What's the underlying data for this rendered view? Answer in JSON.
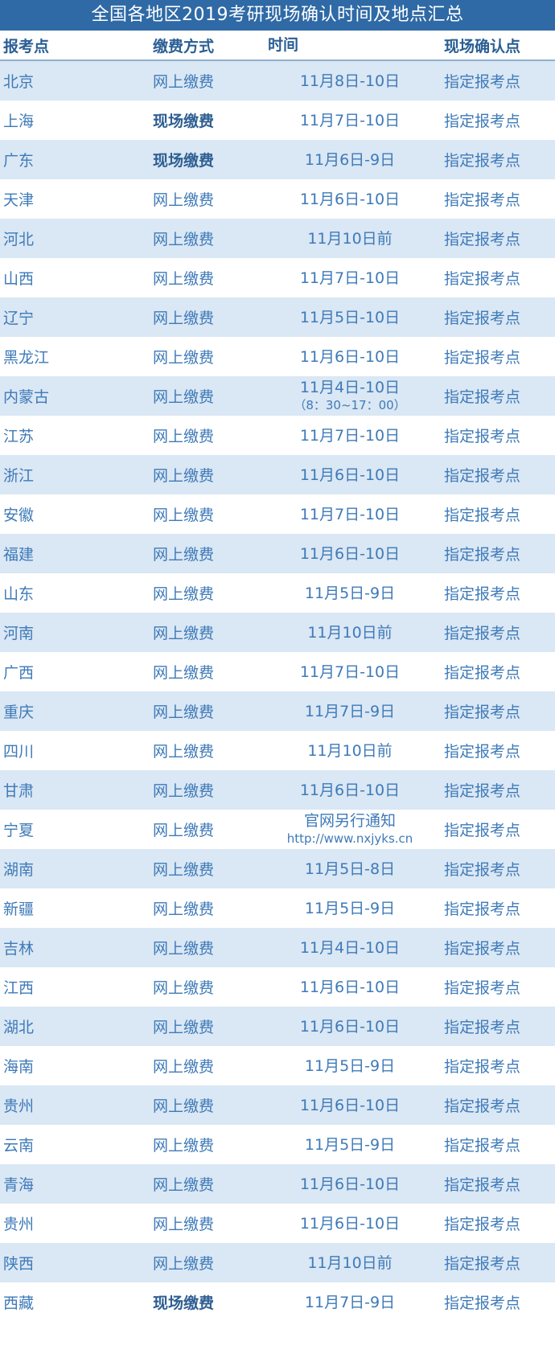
{
  "title": "全国各地区2019考研现场确认时间及地点汇总",
  "headers": [
    "报考点",
    "缴费方式",
    "时间",
    "现场确认点"
  ],
  "rows": [
    [
      "北京",
      "网上缴费",
      "11月8日-10日",
      "",
      "指定报考点",
      false
    ],
    [
      "上海",
      "现场缴费",
      "11月7日-10日",
      "",
      "指定报考点",
      true
    ],
    [
      "广东",
      "现场缴费",
      "11月6日-9日",
      "",
      "指定报考点",
      true
    ],
    [
      "天津",
      "网上缴费",
      "11月6日-10日",
      "",
      "指定报考点",
      false
    ],
    [
      "河北",
      "网上缴费",
      "11月10日前",
      "",
      "指定报考点",
      false
    ],
    [
      "山西",
      "网上缴费",
      "11月7日-10日",
      "",
      "指定报考点",
      false
    ],
    [
      "辽宁",
      "网上缴费",
      "11月5日-10日",
      "",
      "指定报考点",
      false
    ],
    [
      "黑龙江",
      "网上缴费",
      "11月6日-10日",
      "",
      "指定报考点",
      false
    ],
    [
      "内蒙古",
      "网上缴费",
      "11月4日-10日",
      "（8：30~17：00）",
      "指定报考点",
      false
    ],
    [
      "江苏",
      "网上缴费",
      "11月7日-10日",
      "",
      "指定报考点",
      false
    ],
    [
      "浙江",
      "网上缴费",
      "11月6日-10日",
      "",
      "指定报考点",
      false
    ],
    [
      "安徽",
      "网上缴费",
      "11月7日-10日",
      "",
      "指定报考点",
      false
    ],
    [
      "福建",
      "网上缴费",
      "11月6日-10日",
      "",
      "指定报考点",
      false
    ],
    [
      "山东",
      "网上缴费",
      "11月5日-9日",
      "",
      "指定报考点",
      false
    ],
    [
      "河南",
      "网上缴费",
      "11月10日前",
      "",
      "指定报考点",
      false
    ],
    [
      "广西",
      "网上缴费",
      "11月7日-10日",
      "",
      "指定报考点",
      false
    ],
    [
      "重庆",
      "网上缴费",
      "11月7日-9日",
      "",
      "指定报考点",
      false
    ],
    [
      "四川",
      "网上缴费",
      "11月10日前",
      "",
      "指定报考点",
      false
    ],
    [
      "甘肃",
      "网上缴费",
      "11月6日-10日",
      "",
      "指定报考点",
      false
    ],
    [
      "宁夏",
      "网上缴费",
      "官网另行通知",
      "http://www.nxjyks.cn",
      "指定报考点",
      false
    ],
    [
      "湖南",
      "网上缴费",
      "11月5日-8日",
      "",
      "指定报考点",
      false
    ],
    [
      "新疆",
      "网上缴费",
      "11月5日-9日",
      "",
      "指定报考点",
      false
    ],
    [
      "吉林",
      "网上缴费",
      "11月4日-10日",
      "",
      "指定报考点",
      false
    ],
    [
      "江西",
      "网上缴费",
      "11月6日-10日",
      "",
      "指定报考点",
      false
    ],
    [
      "湖北",
      "网上缴费",
      "11月6日-10日",
      "",
      "指定报考点",
      false
    ],
    [
      "海南",
      "网上缴费",
      "11月5日-9日",
      "",
      "指定报考点",
      false
    ],
    [
      "贵州",
      "网上缴费",
      "11月6日-10日",
      "",
      "指定报考点",
      false
    ],
    [
      "云南",
      "网上缴费",
      "11月5日-9日",
      "",
      "指定报考点",
      false
    ],
    [
      "青海",
      "网上缴费",
      "11月6日-10日",
      "",
      "指定报考点",
      false
    ],
    [
      "贵州",
      "网上缴费",
      "11月6日-10日",
      "",
      "指定报考点",
      false
    ],
    [
      "陕西",
      "网上缴费",
      "11月10日前",
      "",
      "指定报考点",
      false
    ],
    [
      "西藏",
      "现场缴费",
      "11月7日-9日",
      "",
      "指定报考点",
      true
    ]
  ]
}
